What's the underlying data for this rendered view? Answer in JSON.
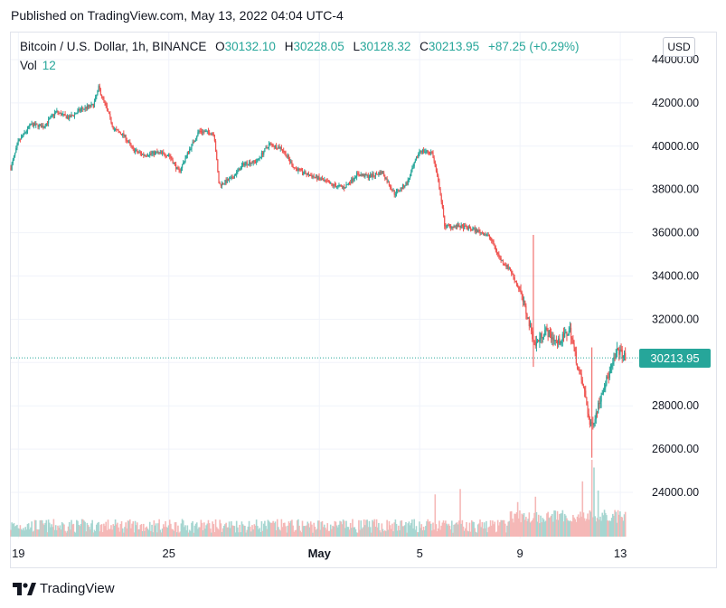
{
  "header": {
    "published": "Published on TradingView.com, May 13, 2022 04:04 UTC-4"
  },
  "legend": {
    "symbol": "Bitcoin / U.S. Dollar, 1h, BINANCE",
    "o_label": "O",
    "o_value": "30132.10",
    "h_label": "H",
    "h_value": "30228.05",
    "l_label": "L",
    "l_value": "30128.32",
    "c_label": "C",
    "c_value": "30213.95",
    "change": "+87.25 (+0.29%)"
  },
  "volume": {
    "label": "Vol",
    "value": "12"
  },
  "currency_button": "USD",
  "last_price": "30213.95",
  "footer": {
    "brand": "TradingView"
  },
  "colors": {
    "up": "#26a69a",
    "down": "#ef5350",
    "up_vol": "#a7d6d1",
    "down_vol": "#f5b8b7",
    "grid": "#f0f3fa"
  },
  "chart_data": {
    "type": "candlestick",
    "interval": "1h",
    "y_ticks": [
      "44000.00",
      "42000.00",
      "40000.00",
      "38000.00",
      "36000.00",
      "34000.00",
      "32000.00",
      "30000.00",
      "28000.00",
      "26000.00",
      "24000.00"
    ],
    "y_tick_values": [
      44000,
      42000,
      40000,
      38000,
      36000,
      34000,
      32000,
      30000,
      28000,
      26000,
      24000
    ],
    "ylim": [
      23000,
      44800
    ],
    "x_ticks": [
      {
        "label": "19",
        "day": 19
      },
      {
        "label": "25",
        "day": 25
      },
      {
        "label": "May",
        "day": 31
      },
      {
        "label": "5",
        "day": 35
      },
      {
        "label": "9",
        "day": 39
      },
      {
        "label": "13",
        "day": 43
      }
    ],
    "xlim": [
      18.7,
      43.5
    ],
    "close_path": [
      [
        18.7,
        39000
      ],
      [
        19.0,
        40200
      ],
      [
        19.5,
        41000
      ],
      [
        20.0,
        40900
      ],
      [
        20.5,
        41600
      ],
      [
        21.0,
        41300
      ],
      [
        21.5,
        41700
      ],
      [
        22.0,
        41900
      ],
      [
        22.2,
        42700
      ],
      [
        22.5,
        41800
      ],
      [
        22.8,
        40800
      ],
      [
        23.2,
        40500
      ],
      [
        23.6,
        39800
      ],
      [
        24.0,
        39600
      ],
      [
        24.5,
        39700
      ],
      [
        25.0,
        39600
      ],
      [
        25.4,
        38800
      ],
      [
        25.8,
        39800
      ],
      [
        26.2,
        40700
      ],
      [
        26.8,
        40600
      ],
      [
        27.0,
        38200
      ],
      [
        27.5,
        38500
      ],
      [
        28.0,
        39200
      ],
      [
        28.5,
        39300
      ],
      [
        29.0,
        40100
      ],
      [
        29.5,
        39900
      ],
      [
        30.0,
        39000
      ],
      [
        30.5,
        38700
      ],
      [
        31.0,
        38500
      ],
      [
        31.5,
        38200
      ],
      [
        32.0,
        38100
      ],
      [
        32.5,
        38700
      ],
      [
        33.0,
        38600
      ],
      [
        33.5,
        38800
      ],
      [
        34.0,
        37800
      ],
      [
        34.5,
        38300
      ],
      [
        35.0,
        39800
      ],
      [
        35.5,
        39700
      ],
      [
        35.8,
        38000
      ],
      [
        36.0,
        36300
      ],
      [
        36.5,
        36300
      ],
      [
        37.0,
        36200
      ],
      [
        37.5,
        36000
      ],
      [
        37.8,
        35800
      ],
      [
        38.2,
        34800
      ],
      [
        38.6,
        34300
      ],
      [
        39.0,
        33300
      ],
      [
        39.3,
        32100
      ],
      [
        39.6,
        30800
      ],
      [
        40.0,
        31500
      ],
      [
        40.5,
        30900
      ],
      [
        41.0,
        31500
      ],
      [
        41.3,
        29800
      ],
      [
        41.6,
        28500
      ],
      [
        41.8,
        27000
      ],
      [
        42.0,
        27500
      ],
      [
        42.3,
        28800
      ],
      [
        42.6,
        29600
      ],
      [
        42.9,
        30600
      ],
      [
        43.2,
        30214
      ]
    ],
    "spikes": [
      {
        "day": 39.55,
        "high": 35900,
        "low": 29800
      },
      {
        "day": 41.85,
        "high": 30700,
        "low": 25600
      }
    ],
    "volume_spikes": [
      {
        "day": 35.6,
        "rel": 0.55
      },
      {
        "day": 36.6,
        "rel": 0.62
      },
      {
        "day": 38.9,
        "rel": 0.45
      },
      {
        "day": 39.6,
        "rel": 0.52
      },
      {
        "day": 41.5,
        "rel": 0.72
      },
      {
        "day": 41.85,
        "rel": 1.0
      },
      {
        "day": 41.95,
        "rel": 0.9
      },
      {
        "day": 42.1,
        "rel": 0.6
      }
    ]
  }
}
